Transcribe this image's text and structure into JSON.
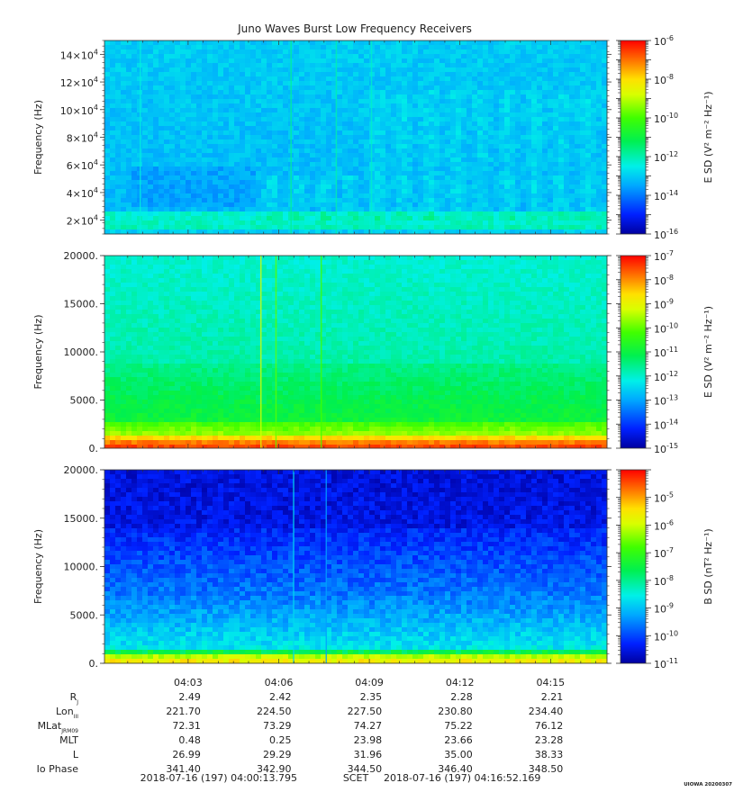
{
  "title": "Juno Waves Burst Low Frequency Receivers",
  "footer": {
    "start": "2018-07-16 (197) 04:00:13.795",
    "frame": "SCET",
    "end": "2018-07-16 (197) 04:16:52.169",
    "stamp": "UIOWA 20200307"
  },
  "time_ticks": [
    "04:03",
    "04:06",
    "04:09",
    "04:12",
    "04:15"
  ],
  "ephemeris": [
    {
      "label": "R",
      "sub": "J",
      "values": [
        "2.49",
        "2.42",
        "2.35",
        "2.28",
        "2.21"
      ]
    },
    {
      "label": "Lon",
      "sub": "III",
      "values": [
        "221.70",
        "224.50",
        "227.50",
        "230.80",
        "234.40"
      ]
    },
    {
      "label": "MLat",
      "sub": "JRM09",
      "values": [
        "72.31",
        "73.29",
        "74.27",
        "75.22",
        "76.12"
      ]
    },
    {
      "label": "MLT",
      "sub": "",
      "values": [
        "0.48",
        "0.25",
        "23.98",
        "23.66",
        "23.28"
      ]
    },
    {
      "label": "L",
      "sub": "",
      "values": [
        "26.99",
        "29.29",
        "31.96",
        "35.00",
        "38.33"
      ]
    },
    {
      "label": "Io Phase",
      "sub": "",
      "values": [
        "341.40",
        "342.90",
        "344.50",
        "346.40",
        "348.50"
      ]
    }
  ],
  "chart_data": [
    {
      "type": "heatmap",
      "ylabel": "Frequency (Hz)",
      "ylim": [
        10000,
        150000
      ],
      "yticks": [
        20000,
        40000,
        60000,
        80000,
        100000,
        120000,
        140000
      ],
      "ytick_labels": [
        {
          "m": "2×10",
          "e": "4"
        },
        {
          "m": "4×10",
          "e": "4"
        },
        {
          "m": "6×10",
          "e": "4"
        },
        {
          "m": "8×10",
          "e": "4"
        },
        {
          "m": "10×10",
          "e": "4"
        },
        {
          "m": "12×10",
          "e": "4"
        },
        {
          "m": "14×10",
          "e": "4"
        }
      ],
      "colorbar": {
        "label": "E SD (V² m⁻² Hz⁻¹)",
        "exp_min": -16,
        "exp_max": -6,
        "labeled_exps": [
          -16,
          -14,
          -12,
          -10,
          -8,
          -6
        ]
      },
      "scheme": "upper"
    },
    {
      "type": "heatmap",
      "ylabel": "Frequency (Hz)",
      "ylim": [
        0,
        20000
      ],
      "yticks": [
        0,
        5000,
        10000,
        15000,
        20000
      ],
      "ytick_labels": [
        "0.",
        "5000.",
        "10000.",
        "15000.",
        "20000."
      ],
      "colorbar": {
        "label": "E SD (V² m⁻² Hz⁻¹)",
        "exp_min": -15,
        "exp_max": -7,
        "labeled_exps": [
          -15,
          -14,
          -13,
          -12,
          -11,
          -10,
          -9,
          -8,
          -7
        ]
      },
      "scheme": "middle"
    },
    {
      "type": "heatmap",
      "ylabel": "Frequency (Hz)",
      "ylim": [
        0,
        20000
      ],
      "yticks": [
        0,
        5000,
        10000,
        15000,
        20000
      ],
      "ytick_labels": [
        "0.",
        "5000.",
        "10000.",
        "15000.",
        "20000."
      ],
      "colorbar": {
        "label": "B SD (nT² Hz⁻¹)",
        "exp_min": -11,
        "exp_max": -4,
        "labeled_exps": [
          -11,
          -10,
          -9,
          -8,
          -7,
          -6,
          -5
        ]
      },
      "scheme": "lower"
    }
  ]
}
